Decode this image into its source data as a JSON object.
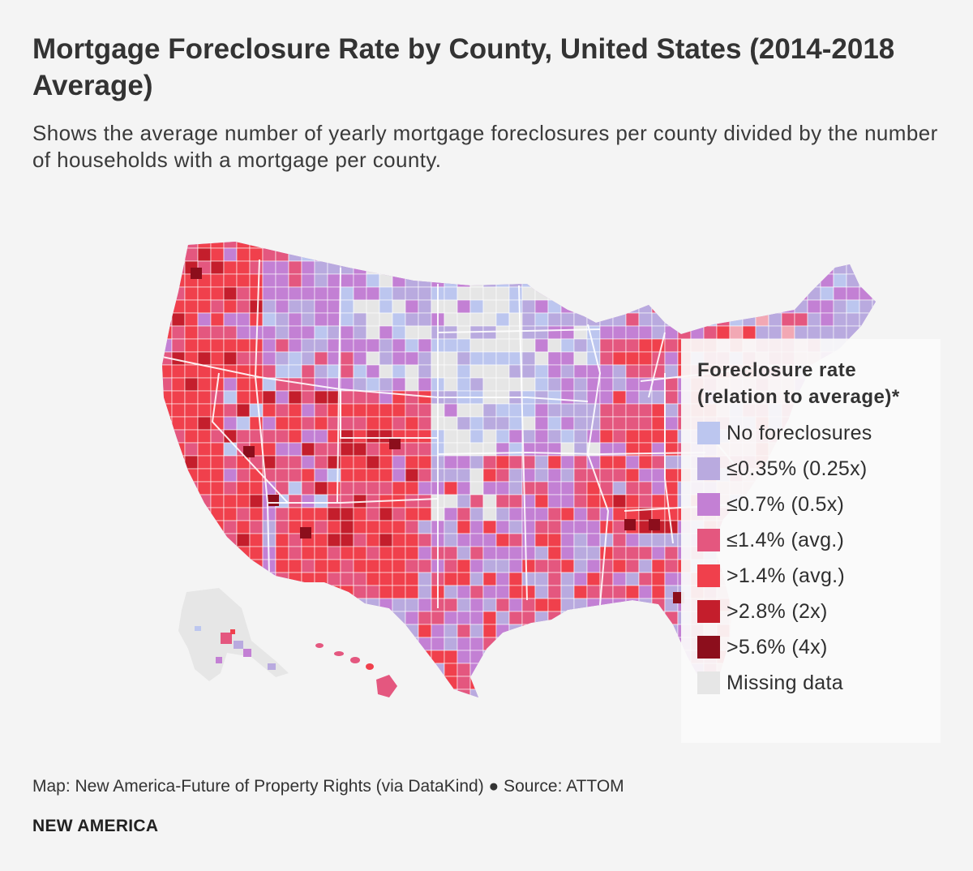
{
  "title": "Mortgage Foreclosure Rate by County, United States (2014-2018 Average)",
  "subtitle": "Shows the average number of yearly mortgage foreclosures per county divided by the number of households with a mortgage per county.",
  "legend": {
    "title": "Foreclosure rate (relation to average)*",
    "items": [
      {
        "label": "No foreclosures",
        "color": "#bcc6ef"
      },
      {
        "label": "≤0.35% (0.25x)",
        "color": "#b9aadf"
      },
      {
        "label": "≤0.7% (0.5x)",
        "color": "#c380d4"
      },
      {
        "label": "≤1.4% (avg.)",
        "color": "#e4577f"
      },
      {
        "label": ">1.4% (avg.)",
        "color": "#f0404c"
      },
      {
        "label": ">2.8% (2x)",
        "color": "#c41e2c"
      },
      {
        "label": ">5.6% (4x)",
        "color": "#8c0e1c"
      },
      {
        "label": "Missing data",
        "color": "#e6e6e6"
      }
    ]
  },
  "credit": "Map: New America-Future of Property Rights (via DataKind) ● Source: ATTOM",
  "brand": "NEW AMERICA"
}
